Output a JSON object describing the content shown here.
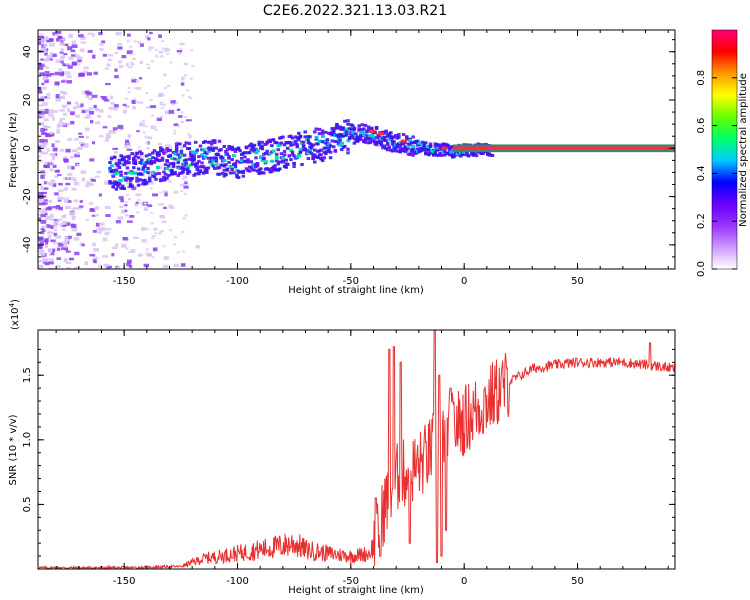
{
  "title": "C2E6.2022.321.13.03.R21",
  "chart_data": [
    {
      "type": "heatmap",
      "xlabel": "Height of straight line (km)",
      "ylabel": "Frequency (Hz)",
      "xlim": [
        -188,
        93
      ],
      "ylim": [
        -50,
        49
      ],
      "x_ticks": [
        -150,
        -100,
        -50,
        0,
        50
      ],
      "x_tick_labels": [
        "-150",
        "-100",
        "-50",
        "0",
        "50"
      ],
      "y_ticks": [
        -40,
        -20,
        0,
        20,
        40
      ],
      "y_tick_labels": [
        "-40",
        "-20",
        "0",
        "20",
        "40"
      ],
      "ridge": {
        "x": [
          -155,
          -140,
          -125,
          -110,
          -100,
          -90,
          -80,
          -70,
          -60,
          -50,
          -45,
          -40,
          -35,
          -30,
          -25,
          -20,
          -15,
          -10,
          -5,
          0,
          5,
          10,
          93
        ],
        "y": [
          -10,
          -7,
          -4,
          -3,
          -6,
          -3,
          -1,
          1,
          3,
          6,
          7,
          6,
          4,
          3,
          2,
          1,
          0,
          0,
          -1,
          0,
          0,
          0,
          0
        ]
      },
      "grid": false
    },
    {
      "type": "line",
      "xlabel": "Height of straight line (km)",
      "ylabel": "SNR (10 * v/v)",
      "multiplier_label": "(x10",
      "multiplier_exp": "4",
      "xlim": [
        -188,
        93
      ],
      "ylim": [
        0,
        1.85
      ],
      "x_ticks": [
        -150,
        -100,
        -50,
        0,
        50
      ],
      "x_tick_labels": [
        "-150",
        "-100",
        "-50",
        "0",
        "50"
      ],
      "y_ticks": [
        0.5,
        1.0,
        1.5
      ],
      "y_tick_labels": [
        "0.5",
        "1.0",
        "1.5"
      ],
      "series_color": "#e83030",
      "envelope": {
        "x": [
          -188,
          -150,
          -125,
          -115,
          -100,
          -90,
          -80,
          -75,
          -70,
          -60,
          -50,
          -42,
          -38,
          -35,
          -30,
          -25,
          -20,
          -15,
          -12,
          -10,
          -5,
          0,
          10,
          20,
          30,
          40,
          50,
          60,
          70,
          80,
          85,
          93
        ],
        "y": [
          0.01,
          0.01,
          0.02,
          0.08,
          0.12,
          0.15,
          0.18,
          0.2,
          0.15,
          0.12,
          0.1,
          0.12,
          0.25,
          0.5,
          0.7,
          0.75,
          0.8,
          0.9,
          1.0,
          1.05,
          1.1,
          1.15,
          1.3,
          1.45,
          1.55,
          1.58,
          1.6,
          1.6,
          1.6,
          1.58,
          1.57,
          1.55
        ]
      },
      "spikes": [
        {
          "x": -39,
          "y": 0.55
        },
        {
          "x": -33,
          "y": 1.7
        },
        {
          "x": -31,
          "y": 1.72
        },
        {
          "x": -28,
          "y": 1.6
        },
        {
          "x": -13,
          "y": 1.85
        },
        {
          "x": -11,
          "y": 1.5
        },
        {
          "x": -6,
          "y": 1.4
        },
        {
          "x": 82,
          "y": 1.75
        }
      ],
      "dips": [
        {
          "x": -37,
          "y": 0.1
        },
        {
          "x": -24,
          "y": 0.2
        },
        {
          "x": -12,
          "y": 0.05
        },
        {
          "x": -10,
          "y": 0.1
        },
        {
          "x": -8,
          "y": 0.3
        }
      ],
      "grid": false
    }
  ],
  "colorbar": {
    "label": "Normalized spectral amplitude",
    "range": [
      0,
      1
    ],
    "ticks": [
      0.0,
      0.2,
      0.4,
      0.6,
      0.8
    ],
    "tick_labels": [
      "0.0",
      "0.2",
      "0.4",
      "0.6",
      "0.8"
    ],
    "colors": [
      "#ffffff",
      "#cc99ff",
      "#9933ff",
      "#6600ff",
      "#0000ff",
      "#00ccff",
      "#00ff66",
      "#66ff00",
      "#ffff00",
      "#ff9900",
      "#ff0000",
      "#ff0077"
    ]
  }
}
